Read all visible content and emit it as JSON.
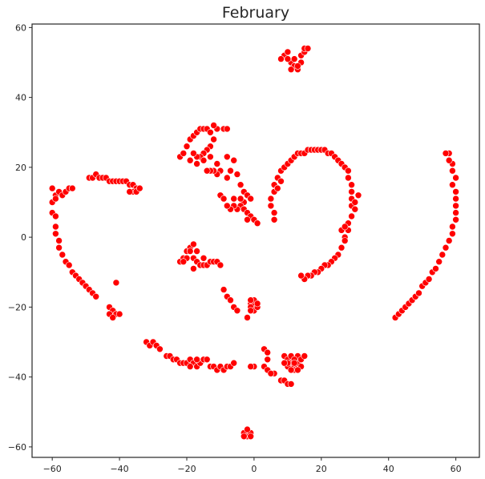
{
  "chart_data": {
    "type": "scatter",
    "title": "February",
    "xlabel": "",
    "ylabel": "",
    "xlim": [
      -66,
      67
    ],
    "ylim": [
      -63,
      61
    ],
    "xticks": [
      -60,
      -40,
      -20,
      0,
      20,
      40,
      60
    ],
    "yticks": [
      -60,
      -40,
      -20,
      0,
      20,
      40,
      60
    ],
    "grid": false,
    "legend": "none",
    "color": "#ff0000",
    "points": [
      [
        9,
        52
      ],
      [
        10,
        53
      ],
      [
        8,
        51
      ],
      [
        11,
        50
      ],
      [
        12,
        49
      ],
      [
        11,
        48
      ],
      [
        13,
        48
      ],
      [
        12,
        51
      ],
      [
        14,
        52
      ],
      [
        15,
        53
      ],
      [
        15,
        54
      ],
      [
        16,
        54
      ],
      [
        14,
        50
      ],
      [
        10,
        51
      ],
      [
        13,
        49
      ],
      [
        -60,
        7
      ],
      [
        -59,
        6
      ],
      [
        -60,
        10
      ],
      [
        -59,
        12
      ],
      [
        -60,
        14
      ],
      [
        -58,
        13
      ],
      [
        -59,
        11
      ],
      [
        -59,
        3
      ],
      [
        -59,
        1
      ],
      [
        -58,
        -1
      ],
      [
        -58,
        -3
      ],
      [
        -57,
        -5
      ],
      [
        -56,
        -7
      ],
      [
        -55,
        -8
      ],
      [
        -54,
        -10
      ],
      [
        -53,
        -11
      ],
      [
        -52,
        -12
      ],
      [
        -51,
        -13
      ],
      [
        -50,
        -14
      ],
      [
        -49,
        -15
      ],
      [
        -48,
        -16
      ],
      [
        -47,
        -17
      ],
      [
        -57,
        12
      ],
      [
        -56,
        13
      ],
      [
        -55,
        14
      ],
      [
        -54,
        14
      ],
      [
        -49,
        17
      ],
      [
        -48,
        17
      ],
      [
        -47,
        18
      ],
      [
        -46,
        17
      ],
      [
        -45,
        17
      ],
      [
        -44,
        17
      ],
      [
        -43,
        16
      ],
      [
        -42,
        16
      ],
      [
        -41,
        16
      ],
      [
        -40,
        16
      ],
      [
        -39,
        16
      ],
      [
        -38,
        16
      ],
      [
        -37,
        15
      ],
      [
        -36,
        15
      ],
      [
        -35,
        14
      ],
      [
        -36,
        13
      ],
      [
        -37,
        13
      ],
      [
        -35,
        13
      ],
      [
        -34,
        14
      ],
      [
        -41,
        -13
      ],
      [
        -43,
        -20
      ],
      [
        -42,
        -21
      ],
      [
        -41,
        -22
      ],
      [
        -43,
        -22
      ],
      [
        -42,
        -23
      ],
      [
        -40,
        -22
      ],
      [
        -22,
        23
      ],
      [
        -21,
        24
      ],
      [
        -20,
        26
      ],
      [
        -19,
        28
      ],
      [
        -18,
        29
      ],
      [
        -17,
        30
      ],
      [
        -16,
        31
      ],
      [
        -15,
        31
      ],
      [
        -14,
        31
      ],
      [
        -13,
        30
      ],
      [
        -12,
        28
      ],
      [
        -13,
        26
      ],
      [
        -14,
        25
      ],
      [
        -15,
        24
      ],
      [
        -16,
        23
      ],
      [
        -17,
        23
      ],
      [
        -18,
        24
      ],
      [
        -19,
        22
      ],
      [
        -17,
        21
      ],
      [
        -15,
        22
      ],
      [
        -13,
        23
      ],
      [
        -11,
        21
      ],
      [
        -10,
        19
      ],
      [
        -11,
        18
      ],
      [
        -12,
        19
      ],
      [
        -13,
        19
      ],
      [
        -14,
        19
      ],
      [
        -9,
        31
      ],
      [
        -8,
        31
      ],
      [
        -11,
        31
      ],
      [
        -12,
        32
      ],
      [
        -8,
        23
      ],
      [
        -6,
        22
      ],
      [
        -7,
        19
      ],
      [
        -5,
        18
      ],
      [
        -8,
        17
      ],
      [
        -4,
        15
      ],
      [
        -3,
        13
      ],
      [
        -2,
        12
      ],
      [
        -1,
        11
      ],
      [
        -3,
        10
      ],
      [
        -4,
        9
      ],
      [
        -5,
        8
      ],
      [
        -6,
        9
      ],
      [
        -7,
        8
      ],
      [
        -8,
        9
      ],
      [
        -6,
        11
      ],
      [
        -4,
        11
      ],
      [
        -3,
        8
      ],
      [
        -2,
        7
      ],
      [
        -1,
        6
      ],
      [
        0,
        5
      ],
      [
        1,
        4
      ],
      [
        -2,
        5
      ],
      [
        -10,
        12
      ],
      [
        -9,
        11
      ],
      [
        -22,
        -7
      ],
      [
        -21,
        -6
      ],
      [
        -20,
        -4
      ],
      [
        -19,
        -3
      ],
      [
        -18,
        -2
      ],
      [
        -19,
        -4
      ],
      [
        -20,
        -6
      ],
      [
        -18,
        -6
      ],
      [
        -17,
        -7
      ],
      [
        -16,
        -8
      ],
      [
        -15,
        -8
      ],
      [
        -14,
        -8
      ],
      [
        -13,
        -7
      ],
      [
        -12,
        -7
      ],
      [
        -11,
        -7
      ],
      [
        -10,
        -8
      ],
      [
        -15,
        -6
      ],
      [
        -17,
        -4
      ],
      [
        -18,
        -9
      ],
      [
        -21,
        -7
      ],
      [
        -9,
        -15
      ],
      [
        -8,
        -17
      ],
      [
        -7,
        -18
      ],
      [
        -6,
        -20
      ],
      [
        -5,
        -21
      ],
      [
        -2,
        -23
      ],
      [
        -1,
        -19
      ],
      [
        0,
        -19
      ],
      [
        -1,
        -20
      ],
      [
        0,
        -21
      ],
      [
        1,
        -20
      ],
      [
        0,
        -18
      ],
      [
        -1,
        -18
      ],
      [
        1,
        -19
      ],
      [
        -1,
        -21
      ],
      [
        -32,
        -30
      ],
      [
        -31,
        -31
      ],
      [
        -30,
        -30
      ],
      [
        -29,
        -31
      ],
      [
        -28,
        -32
      ],
      [
        -26,
        -34
      ],
      [
        -25,
        -34
      ],
      [
        -24,
        -35
      ],
      [
        -23,
        -35
      ],
      [
        -22,
        -36
      ],
      [
        -21,
        -36
      ],
      [
        -20,
        -36
      ],
      [
        -19,
        -35
      ],
      [
        -18,
        -36
      ],
      [
        -17,
        -37
      ],
      [
        -16,
        -36
      ],
      [
        -15,
        -35
      ],
      [
        -14,
        -35
      ],
      [
        -13,
        -37
      ],
      [
        -12,
        -37
      ],
      [
        -11,
        -38
      ],
      [
        -10,
        -37
      ],
      [
        -9,
        -38
      ],
      [
        -8,
        -37
      ],
      [
        -7,
        -37
      ],
      [
        -6,
        -36
      ],
      [
        -19,
        -37
      ],
      [
        -17,
        -35
      ],
      [
        0,
        -37
      ],
      [
        -1,
        -37
      ],
      [
        3,
        -32
      ],
      [
        4,
        -33
      ],
      [
        4,
        -35
      ],
      [
        3,
        -37
      ],
      [
        4,
        -38
      ],
      [
        6,
        -39
      ],
      [
        5,
        -39
      ],
      [
        9,
        -34
      ],
      [
        10,
        -35
      ],
      [
        11,
        -36
      ],
      [
        12,
        -37
      ],
      [
        13,
        -36
      ],
      [
        11,
        -34
      ],
      [
        13,
        -34
      ],
      [
        14,
        -35
      ],
      [
        15,
        -34
      ],
      [
        12,
        -35
      ],
      [
        10,
        -37
      ],
      [
        12,
        -38
      ],
      [
        11,
        -38
      ],
      [
        14,
        -37
      ],
      [
        13,
        -38
      ],
      [
        10,
        -36
      ],
      [
        12,
        -36
      ],
      [
        9,
        -36
      ],
      [
        8,
        -41
      ],
      [
        9,
        -41
      ],
      [
        10,
        -42
      ],
      [
        11,
        -42
      ],
      [
        -3,
        -56
      ],
      [
        -2,
        -57
      ],
      [
        -1,
        -56
      ],
      [
        -2,
        -55
      ],
      [
        -3,
        -57
      ],
      [
        -1,
        -57
      ],
      [
        6,
        5
      ],
      [
        6,
        7
      ],
      [
        5,
        9
      ],
      [
        5,
        11
      ],
      [
        6,
        13
      ],
      [
        6,
        15
      ],
      [
        7,
        17
      ],
      [
        8,
        19
      ],
      [
        9,
        20
      ],
      [
        10,
        21
      ],
      [
        11,
        22
      ],
      [
        12,
        23
      ],
      [
        13,
        24
      ],
      [
        14,
        24
      ],
      [
        15,
        24
      ],
      [
        16,
        25
      ],
      [
        17,
        25
      ],
      [
        18,
        25
      ],
      [
        19,
        25
      ],
      [
        20,
        25
      ],
      [
        21,
        25
      ],
      [
        22,
        24
      ],
      [
        23,
        24
      ],
      [
        24,
        23
      ],
      [
        25,
        22
      ],
      [
        26,
        21
      ],
      [
        27,
        20
      ],
      [
        28,
        19
      ],
      [
        28,
        17
      ],
      [
        29,
        15
      ],
      [
        29,
        13
      ],
      [
        29,
        11
      ],
      [
        29,
        9
      ],
      [
        30,
        8
      ],
      [
        29,
        6
      ],
      [
        28,
        4
      ],
      [
        28,
        2
      ],
      [
        27,
        0
      ],
      [
        27,
        -1
      ],
      [
        26,
        -3
      ],
      [
        25,
        -5
      ],
      [
        24,
        -6
      ],
      [
        23,
        -7
      ],
      [
        22,
        -8
      ],
      [
        21,
        -8
      ],
      [
        20,
        -9
      ],
      [
        19,
        -10
      ],
      [
        18,
        -10
      ],
      [
        17,
        -11
      ],
      [
        16,
        -11
      ],
      [
        15,
        -12
      ],
      [
        14,
        -11
      ],
      [
        30,
        10
      ],
      [
        31,
        12
      ],
      [
        8,
        16
      ],
      [
        7,
        14
      ],
      [
        26,
        2
      ],
      [
        27,
        3
      ],
      [
        42,
        -23
      ],
      [
        43,
        -22
      ],
      [
        44,
        -21
      ],
      [
        45,
        -20
      ],
      [
        46,
        -19
      ],
      [
        47,
        -18
      ],
      [
        48,
        -17
      ],
      [
        49,
        -16
      ],
      [
        50,
        -14
      ],
      [
        51,
        -13
      ],
      [
        52,
        -12
      ],
      [
        53,
        -10
      ],
      [
        54,
        -9
      ],
      [
        55,
        -7
      ],
      [
        56,
        -5
      ],
      [
        57,
        -3
      ],
      [
        58,
        -1
      ],
      [
        59,
        1
      ],
      [
        59,
        3
      ],
      [
        60,
        5
      ],
      [
        60,
        7
      ],
      [
        60,
        9
      ],
      [
        60,
        11
      ],
      [
        60,
        13
      ],
      [
        59,
        15
      ],
      [
        60,
        17
      ],
      [
        59,
        19
      ],
      [
        59,
        21
      ],
      [
        58,
        22
      ],
      [
        58,
        24
      ],
      [
        57,
        24
      ]
    ]
  }
}
